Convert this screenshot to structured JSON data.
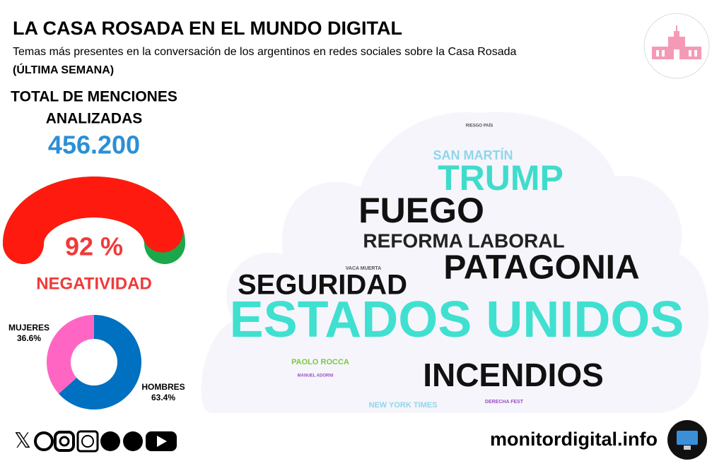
{
  "header": {
    "title": "LA CASA ROSADA EN EL MUNDO DIGITAL",
    "subtitle": "Temas más presentes en la conversación de los argentinos en redes sociales sobre la Casa Rosada",
    "period": "(ÚLTIMA SEMANA)"
  },
  "total": {
    "label": [
      "TOTAL DE MENCIONES",
      "ANALIZADAS"
    ],
    "value": "456.200"
  },
  "chart_data": [
    {
      "type": "gauge",
      "label": "NEGATIVIDAD",
      "values": [
        92
      ],
      "value_labels": [
        "92 %"
      ],
      "ylim": [
        0,
        100
      ],
      "color": "#ff1a0f",
      "track_color": "#1aa84a"
    },
    {
      "type": "pie",
      "categories": [
        "MUJERES",
        "HOMBRES"
      ],
      "values": [
        36.6,
        63.4
      ],
      "value_labels": [
        "36.6%",
        "63.4%"
      ],
      "colors": [
        "#ff66c4",
        "#0070c0"
      ],
      "donut": true
    }
  ],
  "word_cloud": {
    "words": [
      {
        "text": "RIESGO PAÍS",
        "color": "#555555"
      },
      {
        "text": "SAN MARTÍN",
        "color": "#8fd6ea"
      },
      {
        "text": "TRUMP",
        "color": "#40dccb"
      },
      {
        "text": "FUEGO",
        "color": "#111111"
      },
      {
        "text": "REFORMA LABORAL",
        "color": "#222222"
      },
      {
        "text": "VACA MUERTA",
        "color": "#555555"
      },
      {
        "text": "PATAGONIA",
        "color": "#111111"
      },
      {
        "text": "SEGURIDAD",
        "color": "#111111"
      },
      {
        "text": "ESTADOS UNIDOS",
        "color": "#40e0d0"
      },
      {
        "text": "PAOLO ROCCA",
        "color": "#7ac943"
      },
      {
        "text": "MANUEL ADORNI",
        "color": "#9b4fc0"
      },
      {
        "text": "INCENDIOS",
        "color": "#111111"
      },
      {
        "text": "DERECHA FEST",
        "color": "#9b4fc0"
      },
      {
        "text": "NEW YORK TIMES",
        "color": "#8fd6ea"
      }
    ]
  },
  "footer": {
    "site": "monitordigital.info"
  }
}
